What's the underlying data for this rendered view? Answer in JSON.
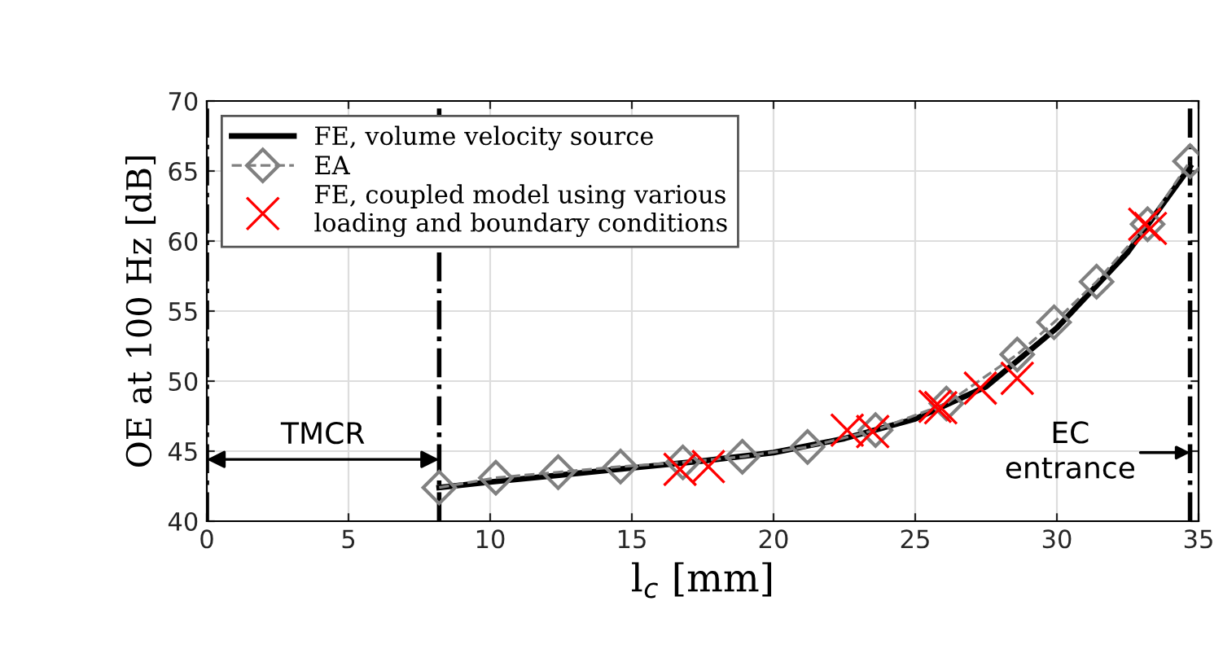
{
  "chart_data": {
    "type": "line",
    "xlabel": "l$_{c}$ [mm]",
    "ylabel": "OE at 100 Hz [dB]",
    "xlim": [
      0,
      35
    ],
    "ylim": [
      40,
      70
    ],
    "xticks": [
      0,
      5,
      10,
      15,
      20,
      25,
      30,
      35
    ],
    "yticks": [
      40,
      45,
      50,
      55,
      60,
      65,
      70
    ],
    "grid": true,
    "legend": "top left",
    "series": [
      {
        "name": "FE, volume velocity source",
        "color": "#000000",
        "marker": "none",
        "line_style": "solid",
        "x": [
          8.2,
          10,
          12.5,
          15,
          17.5,
          20,
          22.5,
          25,
          27.5,
          30,
          32.5,
          34.7
        ],
        "values": [
          42.4,
          42.8,
          43.3,
          43.8,
          44.3,
          44.9,
          45.9,
          47.3,
          49.6,
          53.8,
          59.2,
          65.3
        ]
      },
      {
        "name": "EA",
        "color": "#808080",
        "type": "line",
        "marker": "diamond",
        "line_style": "dashed",
        "x": [
          8.2,
          10.2,
          12.4,
          14.6,
          16.8,
          18.9,
          21.2,
          23.6,
          26.1,
          28.6,
          29.9,
          31.4,
          33.2,
          34.7
        ],
        "values": [
          42.4,
          43.1,
          43.5,
          43.9,
          44.2,
          44.6,
          45.3,
          46.5,
          48.4,
          51.9,
          54.2,
          57.1,
          61.2,
          65.7
        ]
      },
      {
        "name": "FE, coupled model using various\nloading and boundary conditions",
        "color": "#ff0000",
        "type": "scatter",
        "marker": "cross",
        "x": [
          16.7,
          17.7,
          22.6,
          23.5,
          25.7,
          25.9,
          27.3,
          28.6,
          33.1,
          33.3
        ],
        "values": [
          43.7,
          43.9,
          46.5,
          46.4,
          48.2,
          48.1,
          49.5,
          50.2,
          61.2,
          60.9
        ]
      }
    ],
    "ref_lines": [
      {
        "axis": "x",
        "value": 0,
        "color": "#000000",
        "line_style": "dashdot"
      },
      {
        "axis": "x",
        "value": 8.2,
        "color": "#000000",
        "line_style": "dashdot"
      },
      {
        "axis": "x",
        "value": 34.7,
        "color": "#000000",
        "line_style": "dashdot"
      }
    ],
    "annotations": [
      "TMCR",
      {
        "text": "EC\nentrance",
        "x": 34.7,
        "y": 44.9
      }
    ]
  }
}
